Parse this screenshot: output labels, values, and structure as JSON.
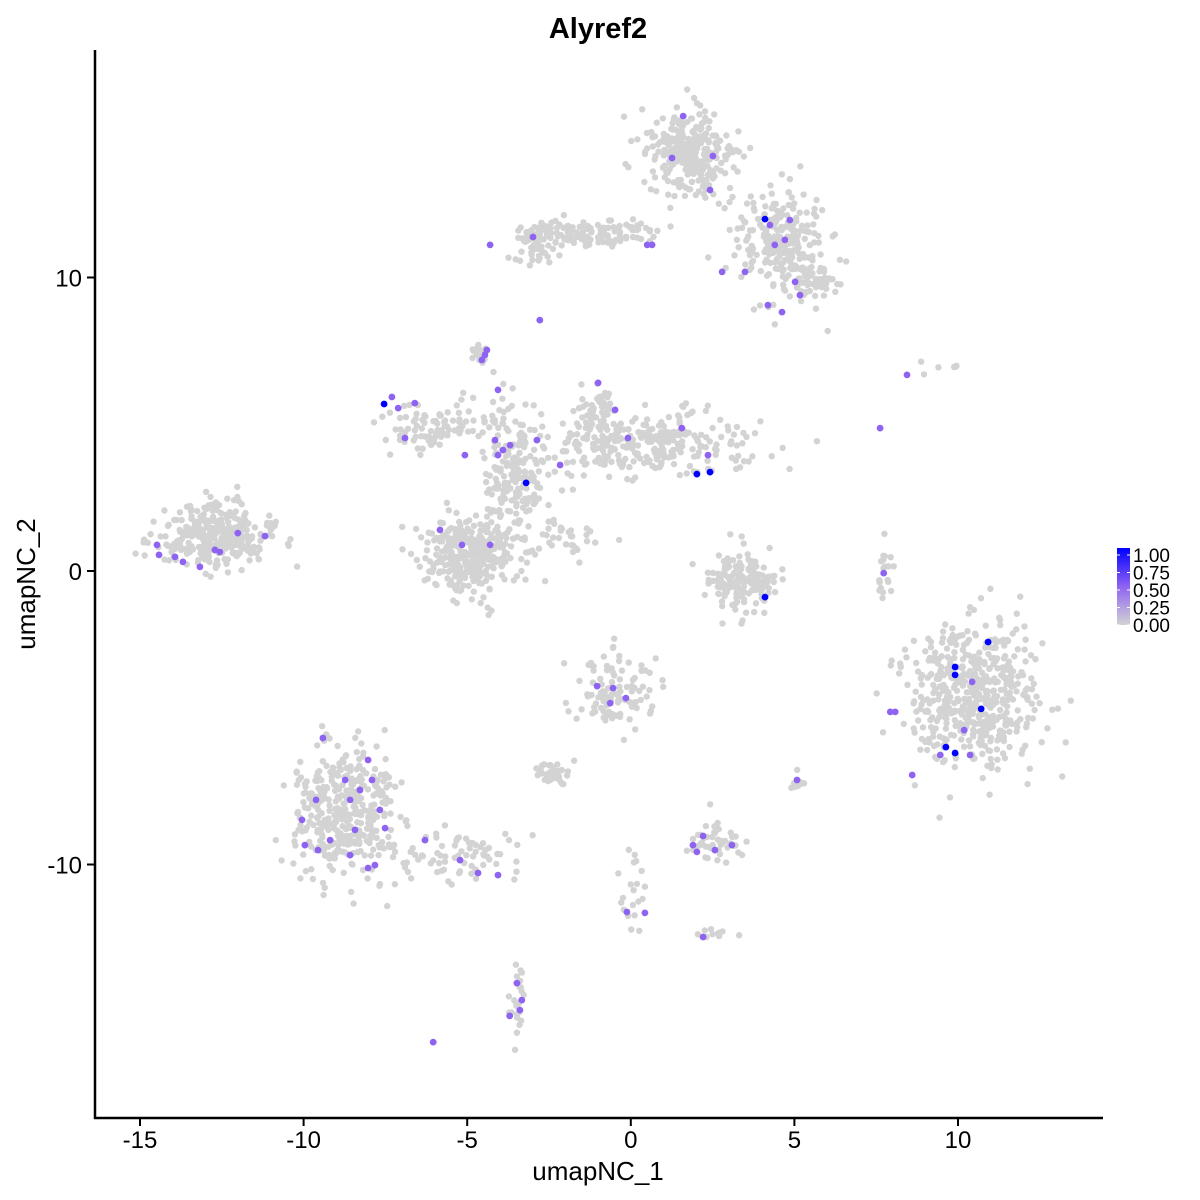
{
  "chart_data": {
    "type": "scatter",
    "title": "Alyref2",
    "xlabel": "umapNC_1",
    "ylabel": "umapNC_2",
    "xlim": [
      -16.4,
      14.4
    ],
    "ylim": [
      -18.6,
      17.75
    ],
    "xticks": [
      -15,
      -10,
      -5,
      0,
      5,
      10
    ],
    "yticks": [
      -10,
      0,
      10
    ],
    "grid": false,
    "legend": {
      "placement": "right",
      "type": "colorbar",
      "labels": [
        "1.00",
        "0.75",
        "0.50",
        "0.25",
        "0.00"
      ],
      "range": [
        0,
        1
      ]
    },
    "colors": {
      "low": "#D3D3D3",
      "mid": "#8F63F2",
      "high": "#0000FF"
    },
    "background_clusters_value": 0,
    "background_clusters": [
      {
        "center": [
          -12.8,
          1.2
        ],
        "sd": [
          0.9,
          0.55
        ],
        "n": 320
      },
      {
        "center": [
          1.8,
          14.2
        ],
        "sd": [
          0.65,
          0.75
        ],
        "n": 300
      },
      {
        "center": [
          4.6,
          11.2
        ],
        "sd": [
          0.7,
          1.0
        ],
        "n": 220
      },
      {
        "center": [
          5.5,
          10.0
        ],
        "sd": [
          0.4,
          0.3
        ],
        "n": 60
      },
      {
        "center": [
          -1.3,
          11.5
        ],
        "sd": [
          1.1,
          0.25
        ],
        "n": 110
      },
      {
        "center": [
          -2.9,
          11.3
        ],
        "sd": [
          0.4,
          0.5
        ],
        "n": 60
      },
      {
        "center": [
          -4.8,
          0.6
        ],
        "sd": [
          0.75,
          0.65
        ],
        "n": 330
      },
      {
        "center": [
          -3.5,
          3.2
        ],
        "sd": [
          0.5,
          1.0
        ],
        "n": 180
      },
      {
        "center": [
          -6.2,
          4.9
        ],
        "sd": [
          0.8,
          0.4
        ],
        "n": 90
      },
      {
        "center": [
          0.5,
          4.3
        ],
        "sd": [
          1.6,
          0.55
        ],
        "n": 280
      },
      {
        "center": [
          -1.1,
          5.4
        ],
        "sd": [
          0.35,
          0.5
        ],
        "n": 60
      },
      {
        "center": [
          -4.6,
          7.4
        ],
        "sd": [
          0.12,
          0.2
        ],
        "n": 20
      },
      {
        "center": [
          -1.9,
          1.2
        ],
        "sd": [
          0.5,
          0.3
        ],
        "n": 30
      },
      {
        "center": [
          -4.0,
          5.3
        ],
        "sd": [
          0.3,
          0.6
        ],
        "n": 20
      },
      {
        "center": [
          3.3,
          -0.3
        ],
        "sd": [
          0.55,
          0.5
        ],
        "n": 160
      },
      {
        "center": [
          7.75,
          -0.1
        ],
        "sd": [
          0.12,
          0.5
        ],
        "n": 20
      },
      {
        "center": [
          10.5,
          -4.3
        ],
        "sd": [
          1.0,
          1.2
        ],
        "n": 520
      },
      {
        "center": [
          -8.7,
          -8.3
        ],
        "sd": [
          0.8,
          1.1
        ],
        "n": 380
      },
      {
        "center": [
          -5.3,
          -9.7
        ],
        "sd": [
          0.9,
          0.4
        ],
        "n": 70
      },
      {
        "center": [
          -0.5,
          -4.0
        ],
        "sd": [
          0.6,
          0.7
        ],
        "n": 110
      },
      {
        "center": [
          -2.4,
          -6.9
        ],
        "sd": [
          0.35,
          0.18
        ],
        "n": 40
      },
      {
        "center": [
          2.6,
          -9.2
        ],
        "sd": [
          0.35,
          0.4
        ],
        "n": 50
      },
      {
        "center": [
          0.0,
          -10.8
        ],
        "sd": [
          0.25,
          0.9
        ],
        "n": 20
      },
      {
        "center": [
          -3.5,
          -14.5
        ],
        "sd": [
          0.15,
          0.6
        ],
        "n": 25
      },
      {
        "center": [
          5.1,
          -7.2
        ],
        "sd": [
          0.1,
          0.15
        ],
        "n": 8
      },
      {
        "center": [
          9.5,
          6.9
        ],
        "sd": [
          0.3,
          0.15
        ],
        "n": 6
      },
      {
        "center": [
          2.6,
          -12.4
        ],
        "sd": [
          0.3,
          0.1
        ],
        "n": 10
      }
    ],
    "expressed_points": [
      [
        -14.48,
        0.89,
        0.5
      ],
      [
        -14.42,
        0.55,
        0.5
      ],
      [
        -13.93,
        0.48,
        0.5
      ],
      [
        -13.69,
        0.31,
        0.5
      ],
      [
        -13.17,
        0.14,
        0.5
      ],
      [
        -12.71,
        0.72,
        0.5
      ],
      [
        -12.56,
        0.65,
        0.5
      ],
      [
        -12.01,
        1.29,
        0.5
      ],
      [
        -11.18,
        1.19,
        0.5
      ],
      [
        -9.41,
        -5.69,
        0.5
      ],
      [
        -9.62,
        -7.8,
        0.5
      ],
      [
        -10.05,
        -8.48,
        0.5
      ],
      [
        -9.96,
        -9.34,
        0.5
      ],
      [
        -9.56,
        -9.51,
        0.5
      ],
      [
        -9.19,
        -9.17,
        0.5
      ],
      [
        -8.73,
        -7.12,
        0.5
      ],
      [
        -8.58,
        -7.8,
        0.5
      ],
      [
        -8.43,
        -8.82,
        0.5
      ],
      [
        -8.28,
        -7.46,
        0.5
      ],
      [
        -8.03,
        -6.44,
        0.5
      ],
      [
        -7.91,
        -7.12,
        0.5
      ],
      [
        -7.67,
        -8.14,
        0.5
      ],
      [
        -7.51,
        -8.76,
        0.5
      ],
      [
        -8.58,
        -9.68,
        0.5
      ],
      [
        -8.03,
        -10.12,
        0.5
      ],
      [
        -7.82,
        -10.02,
        0.5
      ],
      [
        -6.29,
        -9.17,
        0.5
      ],
      [
        -5.22,
        -9.85,
        0.5
      ],
      [
        -4.67,
        -10.29,
        0.5
      ],
      [
        -4.06,
        -10.36,
        0.5
      ],
      [
        -7.3,
        5.93,
        0.5
      ],
      [
        -6.9,
        4.53,
        0.5
      ],
      [
        -7.11,
        5.55,
        0.5
      ],
      [
        -6.6,
        5.72,
        0.5
      ],
      [
        -5.83,
        1.4,
        0.5
      ],
      [
        -5.16,
        0.89,
        0.5
      ],
      [
        -5.07,
        3.95,
        0.5
      ],
      [
        -4.15,
        4.46,
        0.5
      ],
      [
        -4.06,
        3.95,
        0.5
      ],
      [
        -3.91,
        4.12,
        0.5
      ],
      [
        -3.69,
        4.29,
        0.5
      ],
      [
        -4.46,
        7.36,
        0.5
      ],
      [
        -4.4,
        7.53,
        0.5
      ],
      [
        -4.55,
        7.19,
        0.5
      ],
      [
        -4.06,
        6.17,
        0.5
      ],
      [
        -4.3,
        0.89,
        0.5
      ],
      [
        -2.87,
        4.46,
        0.5
      ],
      [
        -2.16,
        3.61,
        0.5
      ],
      [
        -1.0,
        6.41,
        0.5
      ],
      [
        -0.48,
        5.49,
        0.5
      ],
      [
        -0.09,
        4.53,
        0.5
      ],
      [
        1.56,
        4.87,
        0.5
      ],
      [
        2.36,
        3.95,
        0.5
      ],
      [
        0.65,
        11.11,
        0.5
      ],
      [
        0.5,
        11.11,
        0.5
      ],
      [
        -2.99,
        11.38,
        0.5
      ],
      [
        -2.78,
        8.55,
        0.5
      ],
      [
        -4.3,
        11.11,
        0.5
      ],
      [
        1.6,
        15.5,
        0.5
      ],
      [
        1.26,
        14.07,
        0.5
      ],
      [
        2.51,
        14.14,
        0.5
      ],
      [
        2.42,
        12.98,
        0.5
      ],
      [
        4.25,
        11.79,
        0.5
      ],
      [
        4.86,
        11.96,
        0.5
      ],
      [
        4.71,
        11.28,
        0.5
      ],
      [
        4.4,
        11.11,
        0.5
      ],
      [
        5.02,
        9.85,
        0.5
      ],
      [
        5.17,
        9.4,
        0.5
      ],
      [
        4.62,
        8.82,
        0.5
      ],
      [
        4.19,
        9.06,
        0.5
      ],
      [
        2.79,
        10.19,
        0.5
      ],
      [
        3.49,
        10.19,
        0.5
      ],
      [
        7.62,
        4.87,
        0.5
      ],
      [
        8.44,
        6.68,
        0.5
      ],
      [
        7.73,
        -0.07,
        0.5
      ],
      [
        7.93,
        -4.8,
        0.5
      ],
      [
        8.08,
        -4.8,
        0.5
      ],
      [
        8.6,
        -6.95,
        0.5
      ],
      [
        10.43,
        -3.78,
        0.5
      ],
      [
        10.19,
        -5.42,
        0.5
      ],
      [
        9.46,
        -6.27,
        0.5
      ],
      [
        10.37,
        -6.27,
        0.5
      ],
      [
        -1.03,
        -3.92,
        0.5
      ],
      [
        -0.63,
        -4.5,
        0.5
      ],
      [
        -0.54,
        -3.99,
        0.5
      ],
      [
        -0.15,
        -4.33,
        0.5
      ],
      [
        5.08,
        -7.12,
        0.5
      ],
      [
        1.9,
        -9.34,
        0.5
      ],
      [
        2.02,
        -9.57,
        0.5
      ],
      [
        2.57,
        -9.51,
        0.5
      ],
      [
        3.09,
        -9.34,
        0.5
      ],
      [
        2.21,
        -9.03,
        0.5
      ],
      [
        -0.12,
        -11.62,
        0.5
      ],
      [
        0.43,
        -11.65,
        0.5
      ],
      [
        2.21,
        -12.47,
        0.5
      ],
      [
        -3.48,
        -14.04,
        0.5
      ],
      [
        -3.7,
        -15.16,
        0.5
      ],
      [
        -3.39,
        -14.96,
        0.5
      ],
      [
        -3.33,
        -14.62,
        0.5
      ],
      [
        -6.04,
        -16.05,
        0.5
      ],
      [
        -7.54,
        5.69,
        1.0
      ],
      [
        -3.2,
        3.0,
        1.0
      ],
      [
        2.02,
        3.3,
        1.0
      ],
      [
        2.42,
        3.37,
        1.0
      ],
      [
        4.1,
        -0.89,
        1.0
      ],
      [
        4.1,
        11.99,
        1.0
      ],
      [
        10.92,
        -2.42,
        1.0
      ],
      [
        9.91,
        -3.27,
        1.0
      ],
      [
        9.91,
        -3.54,
        1.0
      ],
      [
        10.71,
        -4.7,
        1.0
      ],
      [
        9.63,
        -6.0,
        1.0
      ],
      [
        9.91,
        -6.2,
        1.0
      ]
    ]
  }
}
